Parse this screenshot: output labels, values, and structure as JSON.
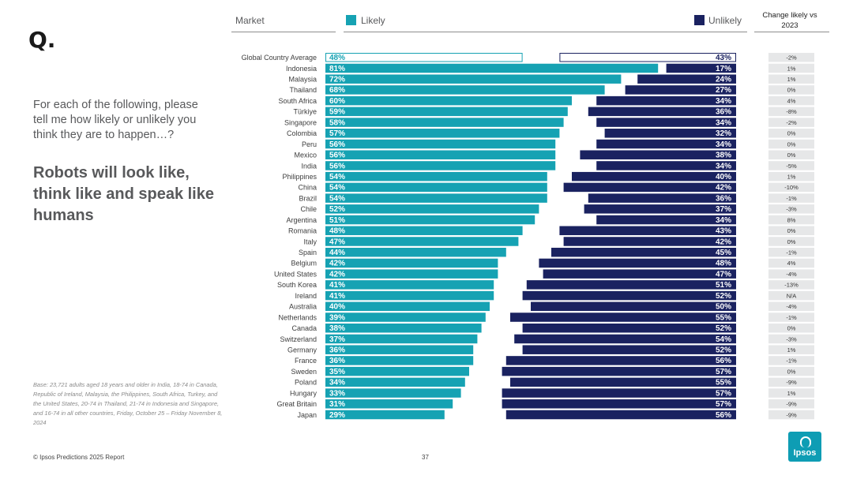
{
  "logo": "Q.",
  "question": "For each of the following, please tell me how likely or unlikely you think they are to happen…?",
  "statement": "Robots will look like, think like and speak like humans",
  "base_note": "Base: 23,721 adults aged 18 years and older in India, 18-74 in Canada, Republic of Ireland, Malaysia, the Philippines, South Africa, Turkey, and the United States, 20-74 in Thailand, 21-74 in Indonesia and Singapore, and 16-74 in all other countries, Friday, October 25 – Friday November 8, 2024",
  "footer": "© Ipsos Predictions 2025 Report",
  "page_number": "37",
  "brand": "Ipsos",
  "headers": {
    "market": "Market",
    "likely": "Likely",
    "unlikely": "Unlikely",
    "change": "Change likely vs 2023"
  },
  "colors": {
    "likely": "#16a2b3",
    "unlikely": "#1a2260",
    "change_bg": "#e6e7e8"
  },
  "chart_data": {
    "type": "bar",
    "title": "Robots will look like, think like and speak like humans",
    "categories": [
      "Global Country Average",
      "Indonesia",
      "Malaysia",
      "Thailand",
      "South Africa",
      "Türkiye",
      "Singapore",
      "Colombia",
      "Peru",
      "Mexico",
      "India",
      "Philippines",
      "China",
      "Brazil",
      "Chile",
      "Argentina",
      "Romania",
      "Italy",
      "Spain",
      "Belgium",
      "United States",
      "South Korea",
      "Ireland",
      "Australia",
      "Netherlands",
      "Canada",
      "Switzerland",
      "Germany",
      "France",
      "Sweden",
      "Poland",
      "Hungary",
      "Great Britain",
      "Japan"
    ],
    "series": [
      {
        "name": "Likely",
        "values": [
          48,
          81,
          72,
          68,
          60,
          59,
          58,
          57,
          56,
          56,
          56,
          54,
          54,
          54,
          52,
          51,
          48,
          47,
          44,
          42,
          42,
          41,
          41,
          40,
          39,
          38,
          37,
          36,
          36,
          35,
          34,
          33,
          31,
          29
        ]
      },
      {
        "name": "Unlikely",
        "values": [
          43,
          17,
          24,
          27,
          34,
          36,
          34,
          32,
          34,
          38,
          34,
          40,
          42,
          36,
          37,
          34,
          43,
          42,
          45,
          48,
          47,
          51,
          52,
          50,
          55,
          52,
          54,
          52,
          56,
          57,
          55,
          57,
          57,
          56
        ]
      }
    ],
    "change_vs_2023": [
      "-2%",
      "1%",
      "1%",
      "0%",
      "4%",
      "-8%",
      "-2%",
      "0%",
      "0%",
      "0%",
      "-5%",
      "1%",
      "-10%",
      "-1%",
      "-3%",
      "8%",
      "0%",
      "0%",
      "-1%",
      "4%",
      "-4%",
      "-13%",
      "N/A",
      "-4%",
      "-1%",
      "0%",
      "-3%",
      "1%",
      "-1%",
      "0%",
      "-9%",
      "1%",
      "-9%",
      "-9%"
    ],
    "xlim": [
      0,
      100
    ]
  }
}
